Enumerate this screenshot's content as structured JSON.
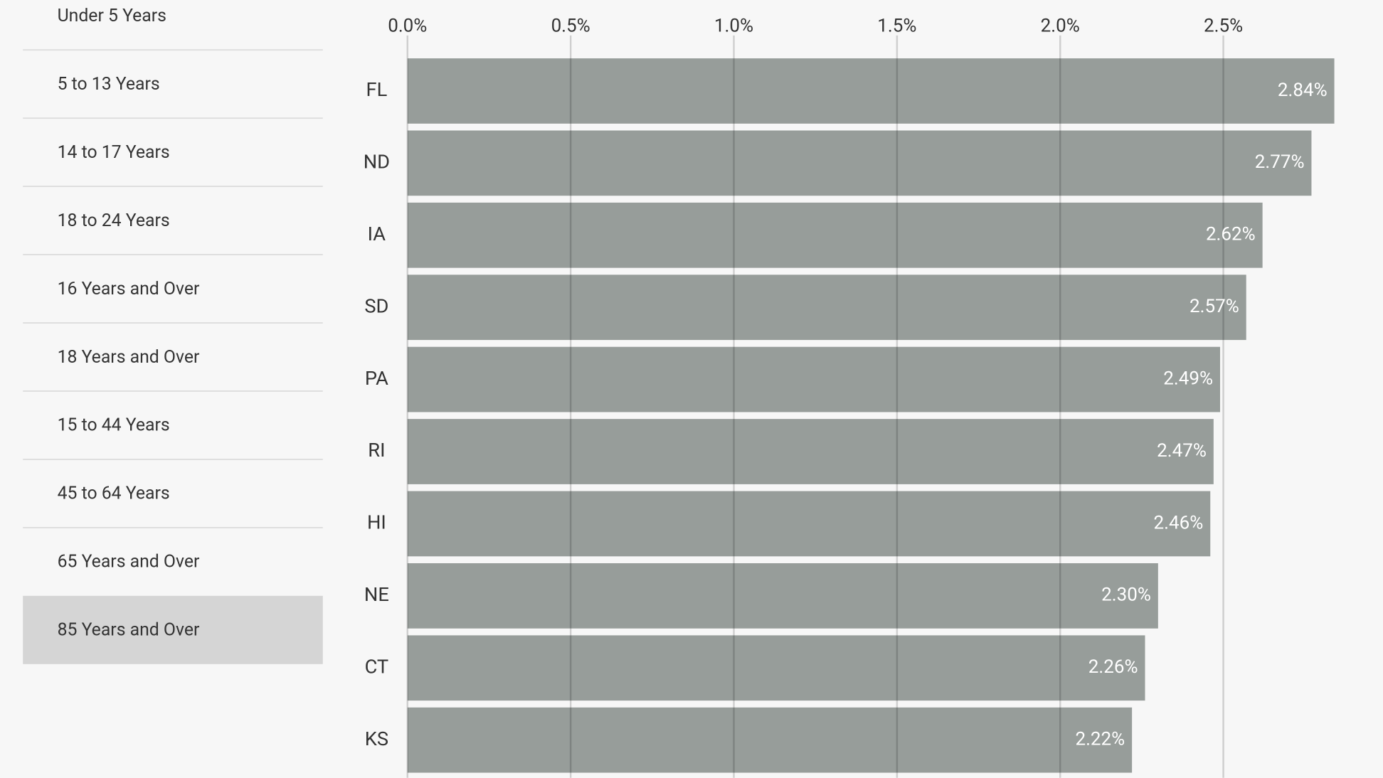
{
  "menu": {
    "items": [
      "Under 5 Years",
      "5 to 13 Years",
      "14 to 17 Years",
      "18 to 24 Years",
      "16 Years and Over",
      "18 Years and Over",
      "15 to 44 Years",
      "45 to 64 Years",
      "65 Years and Over",
      "85 Years and Over"
    ],
    "selected": 9
  },
  "chart_data": {
    "type": "bar",
    "orientation": "horizontal",
    "categories": [
      "FL",
      "ND",
      "IA",
      "SD",
      "PA",
      "RI",
      "HI",
      "NE",
      "CT",
      "KS"
    ],
    "values": [
      2.84,
      2.77,
      2.62,
      2.57,
      2.49,
      2.47,
      2.46,
      2.3,
      2.26,
      2.22
    ],
    "value_labels": [
      "2.84%",
      "2.77%",
      "2.62%",
      "2.57%",
      "2.49%",
      "2.47%",
      "2.46%",
      "2.30%",
      "2.26%",
      "2.22%"
    ],
    "color": "#979d9a",
    "xlim": [
      0,
      3
    ],
    "xticks": [
      {
        "value": 0,
        "label": "0.0%"
      },
      {
        "value": 0.5,
        "label": "0.5%"
      },
      {
        "value": 1,
        "label": "1.0%"
      },
      {
        "value": 1.5,
        "label": "1.5%"
      },
      {
        "value": 2,
        "label": "2.0%"
      },
      {
        "value": 2.5,
        "label": "2.5%"
      }
    ],
    "grid": true
  }
}
